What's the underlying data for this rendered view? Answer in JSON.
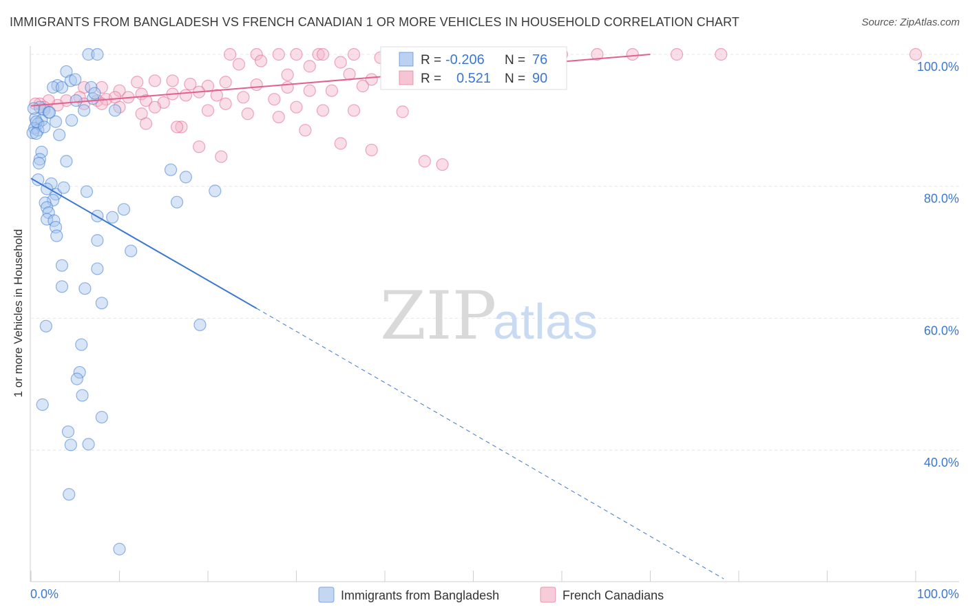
{
  "title": "IMMIGRANTS FROM BANGLADESH VS FRENCH CANADIAN 1 OR MORE VEHICLES IN HOUSEHOLD CORRELATION CHART",
  "source": "Source: ZipAtlas.com",
  "watermark": {
    "zip": "ZIP",
    "atlas": "atlas"
  },
  "colors": {
    "blue": "#3b78d0",
    "blue_fill": "#a9c6ee",
    "pink": "#e2608b",
    "pink_fill": "#f4b6c9"
  },
  "legend": {
    "r_label": "R =",
    "n_label": "N =",
    "rows": [
      {
        "r": "-0.206",
        "n": "76"
      },
      {
        "r": "0.521",
        "n": "90"
      }
    ]
  },
  "chart_data": {
    "type": "scatter",
    "title": "IMMIGRANTS FROM BANGLADESH VS FRENCH CANADIAN 1 OR MORE VEHICLES IN HOUSEHOLD CORRELATION CHART",
    "xlabel": "",
    "ylabel": "1 or more Vehicles in Household",
    "xlim": [
      0,
      100
    ],
    "ylim": [
      20,
      102
    ],
    "x_tick_labels": [
      "0.0%",
      "100.0%"
    ],
    "y_ticks": [
      40,
      60,
      80,
      100
    ],
    "y_tick_labels": [
      "40.0%",
      "60.0%",
      "80.0%",
      "100.0%"
    ],
    "series": [
      {
        "name": "Immigrants from Bangladesh",
        "color": "#3b78d0",
        "trend": {
          "x0": 0,
          "y0": 81.2,
          "x1": 25.5,
          "y1": 61.5,
          "dash_x1": 78.3,
          "dash_y1": 20.5
        },
        "points": [
          [
            6.5,
            100
          ],
          [
            7.5,
            100
          ],
          [
            4.0,
            97.4
          ],
          [
            3.0,
            95.3
          ],
          [
            2.5,
            95.0
          ],
          [
            3.5,
            95.0
          ],
          [
            4.5,
            96.0
          ],
          [
            6.8,
            95.0
          ],
          [
            7.0,
            93.3
          ],
          [
            5.0,
            96.2
          ],
          [
            7.2,
            94.1
          ],
          [
            1.0,
            92.0
          ],
          [
            1.5,
            91.6
          ],
          [
            2.0,
            91.2
          ],
          [
            0.5,
            90.3
          ],
          [
            1.2,
            90.0
          ],
          [
            0.8,
            89.5
          ],
          [
            2.8,
            89.8
          ],
          [
            4.6,
            90.0
          ],
          [
            0.4,
            88.8
          ],
          [
            0.8,
            88.5
          ],
          [
            0.2,
            88.1
          ],
          [
            0.6,
            88.0
          ],
          [
            3.2,
            87.8
          ],
          [
            1.2,
            85.2
          ],
          [
            1.0,
            84.1
          ],
          [
            0.9,
            83.5
          ],
          [
            4.0,
            83.8
          ],
          [
            9.5,
            91.5
          ],
          [
            2.8,
            78.8
          ],
          [
            0.8,
            81.0
          ],
          [
            2.3,
            80.4
          ],
          [
            3.7,
            79.8
          ],
          [
            6.3,
            79.2
          ],
          [
            1.8,
            79.6
          ],
          [
            2.5,
            77.9
          ],
          [
            1.6,
            77.5
          ],
          [
            1.8,
            76.8
          ],
          [
            2.0,
            76.0
          ],
          [
            1.8,
            75.0
          ],
          [
            2.6,
            74.8
          ],
          [
            2.8,
            73.8
          ],
          [
            2.9,
            72.5
          ],
          [
            7.5,
            75.5
          ],
          [
            9.2,
            75.3
          ],
          [
            10.5,
            76.5
          ],
          [
            15.8,
            82.5
          ],
          [
            17.5,
            81.4
          ],
          [
            20.8,
            79.3
          ],
          [
            16.5,
            77.6
          ],
          [
            7.5,
            71.8
          ],
          [
            11.3,
            70.2
          ],
          [
            3.5,
            68.0
          ],
          [
            7.5,
            67.5
          ],
          [
            3.5,
            64.8
          ],
          [
            6.1,
            64.5
          ],
          [
            8.0,
            62.3
          ],
          [
            1.7,
            58.8
          ],
          [
            19.1,
            59.0
          ],
          [
            5.7,
            56.0
          ],
          [
            5.5,
            51.8
          ],
          [
            5.2,
            50.8
          ],
          [
            5.8,
            48.3
          ],
          [
            1.3,
            46.9
          ],
          [
            8.0,
            45.0
          ],
          [
            4.2,
            42.8
          ],
          [
            4.5,
            40.8
          ],
          [
            6.5,
            40.9
          ],
          [
            4.3,
            33.3
          ],
          [
            10.0,
            25.0
          ],
          [
            0.6,
            89.8
          ],
          [
            1.5,
            89.0
          ],
          [
            2.1,
            91.2
          ],
          [
            0.3,
            91.8
          ],
          [
            6.0,
            91.5
          ],
          [
            5.1,
            93.0
          ]
        ]
      },
      {
        "name": "French Canadians",
        "color": "#e2608b",
        "trend": {
          "x0": 0,
          "y0": 92.2,
          "x1": 70,
          "y1": 100.0
        },
        "points": [
          [
            22.5,
            100
          ],
          [
            25.5,
            100
          ],
          [
            28.0,
            100
          ],
          [
            30.0,
            100
          ],
          [
            32.5,
            100
          ],
          [
            33.0,
            100
          ],
          [
            36.5,
            100
          ],
          [
            41.0,
            100
          ],
          [
            43.5,
            100
          ],
          [
            47.0,
            100
          ],
          [
            49.0,
            100
          ],
          [
            52.0,
            100
          ],
          [
            53.5,
            100
          ],
          [
            56.0,
            100
          ],
          [
            57.5,
            100
          ],
          [
            60.0,
            100
          ],
          [
            64.0,
            100
          ],
          [
            68.0,
            100
          ],
          [
            73.0,
            100
          ],
          [
            78.0,
            100
          ],
          [
            100.0,
            100
          ],
          [
            44.0,
            100
          ],
          [
            46.0,
            99.8
          ],
          [
            39.5,
            99.5
          ],
          [
            26.0,
            99.0
          ],
          [
            35.0,
            98.8
          ],
          [
            31.5,
            98.2
          ],
          [
            23.5,
            98.5
          ],
          [
            47.5,
            98.0
          ],
          [
            29.0,
            96.9
          ],
          [
            36.0,
            97.0
          ],
          [
            41.0,
            96.5
          ],
          [
            38.5,
            96.2
          ],
          [
            16.0,
            96.0
          ],
          [
            14.0,
            96.0
          ],
          [
            12.0,
            95.8
          ],
          [
            22.0,
            95.8
          ],
          [
            18.0,
            95.5
          ],
          [
            20.0,
            95.2
          ],
          [
            25.5,
            95.4
          ],
          [
            29.0,
            95.0
          ],
          [
            31.5,
            94.5
          ],
          [
            34.0,
            94.5
          ],
          [
            37.5,
            95.2
          ],
          [
            6.0,
            95.0
          ],
          [
            8.0,
            95.0
          ],
          [
            10.0,
            94.5
          ],
          [
            12.5,
            94.0
          ],
          [
            16.0,
            94.0
          ],
          [
            17.5,
            93.8
          ],
          [
            19.0,
            94.3
          ],
          [
            21.0,
            93.8
          ],
          [
            24.0,
            93.5
          ],
          [
            27.5,
            93.2
          ],
          [
            4.0,
            93.0
          ],
          [
            5.5,
            93.5
          ],
          [
            7.5,
            93.0
          ],
          [
            8.5,
            93.2
          ],
          [
            9.5,
            93.5
          ],
          [
            11.0,
            93.5
          ],
          [
            13.0,
            93.0
          ],
          [
            15.0,
            92.7
          ],
          [
            3.0,
            92.3
          ],
          [
            2.0,
            93.0
          ],
          [
            1.0,
            92.5
          ],
          [
            0.5,
            92.5
          ],
          [
            1.5,
            92.0
          ],
          [
            6.0,
            92.5
          ],
          [
            8.0,
            92.5
          ],
          [
            10.0,
            92.0
          ],
          [
            14.0,
            92.0
          ],
          [
            22.0,
            92.5
          ],
          [
            30.0,
            92.0
          ],
          [
            33.0,
            91.5
          ],
          [
            36.5,
            91.5
          ],
          [
            42.0,
            91.3
          ],
          [
            12.5,
            91.0
          ],
          [
            20.0,
            91.5
          ],
          [
            24.5,
            91.0
          ],
          [
            28.0,
            90.5
          ],
          [
            13.0,
            89.5
          ],
          [
            17.0,
            89.0
          ],
          [
            16.5,
            89.0
          ],
          [
            31.0,
            88.5
          ],
          [
            19.0,
            86.0
          ],
          [
            21.5,
            84.5
          ],
          [
            35.0,
            86.5
          ],
          [
            38.5,
            85.5
          ],
          [
            44.5,
            83.8
          ],
          [
            46.5,
            83.3
          ]
        ]
      }
    ]
  },
  "bottom_legend": [
    "Immigrants from Bangladesh",
    "French Canadians"
  ]
}
